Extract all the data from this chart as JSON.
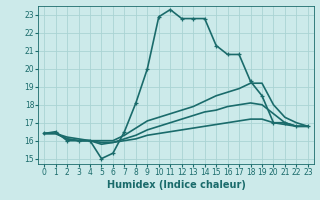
{
  "xlabel": "Humidex (Indice chaleur)",
  "bg_color": "#cceaea",
  "grid_color": "#aad4d4",
  "line_color": "#1a6b6b",
  "xlim": [
    -0.5,
    23.5
  ],
  "ylim": [
    14.7,
    23.5
  ],
  "xticks": [
    0,
    1,
    2,
    3,
    4,
    5,
    6,
    7,
    8,
    9,
    10,
    11,
    12,
    13,
    14,
    15,
    16,
    17,
    18,
    19,
    20,
    21,
    22,
    23
  ],
  "yticks": [
    15,
    16,
    17,
    18,
    19,
    20,
    21,
    22,
    23
  ],
  "lines": [
    {
      "x": [
        0,
        1,
        2,
        3,
        4,
        5,
        6,
        7,
        8,
        9,
        10,
        11,
        12,
        13,
        14,
        15,
        16,
        17,
        18,
        19,
        20,
        21,
        22,
        23
      ],
      "y": [
        16.4,
        16.5,
        16.0,
        16.0,
        16.0,
        15.0,
        15.3,
        16.5,
        18.1,
        20.0,
        22.9,
        23.3,
        22.8,
        22.8,
        22.8,
        21.3,
        20.8,
        20.8,
        19.3,
        18.5,
        17.0,
        17.0,
        16.8,
        16.8
      ],
      "marker": "+",
      "lw": 1.2
    },
    {
      "x": [
        0,
        1,
        2,
        3,
        4,
        5,
        6,
        7,
        8,
        9,
        10,
        11,
        12,
        13,
        14,
        15,
        16,
        17,
        18,
        19,
        20,
        21,
        22,
        23
      ],
      "y": [
        16.4,
        16.4,
        16.2,
        16.1,
        16.0,
        16.0,
        16.0,
        16.3,
        16.7,
        17.1,
        17.3,
        17.5,
        17.7,
        17.9,
        18.2,
        18.5,
        18.7,
        18.9,
        19.2,
        19.2,
        18.0,
        17.3,
        17.0,
        16.8
      ],
      "marker": null,
      "lw": 1.2
    },
    {
      "x": [
        0,
        1,
        2,
        3,
        4,
        5,
        6,
        7,
        8,
        9,
        10,
        11,
        12,
        13,
        14,
        15,
        16,
        17,
        18,
        19,
        20,
        21,
        22,
        23
      ],
      "y": [
        16.4,
        16.4,
        16.1,
        16.0,
        16.0,
        15.8,
        15.9,
        16.1,
        16.3,
        16.6,
        16.8,
        17.0,
        17.2,
        17.4,
        17.6,
        17.7,
        17.9,
        18.0,
        18.1,
        18.0,
        17.5,
        17.0,
        16.8,
        16.8
      ],
      "marker": null,
      "lw": 1.2
    },
    {
      "x": [
        0,
        1,
        2,
        3,
        4,
        5,
        6,
        7,
        8,
        9,
        10,
        11,
        12,
        13,
        14,
        15,
        16,
        17,
        18,
        19,
        20,
        21,
        22,
        23
      ],
      "y": [
        16.4,
        16.4,
        16.1,
        16.0,
        16.0,
        15.9,
        15.9,
        16.0,
        16.1,
        16.3,
        16.4,
        16.5,
        16.6,
        16.7,
        16.8,
        16.9,
        17.0,
        17.1,
        17.2,
        17.2,
        17.0,
        16.9,
        16.8,
        16.8
      ],
      "marker": null,
      "lw": 1.2
    }
  ]
}
